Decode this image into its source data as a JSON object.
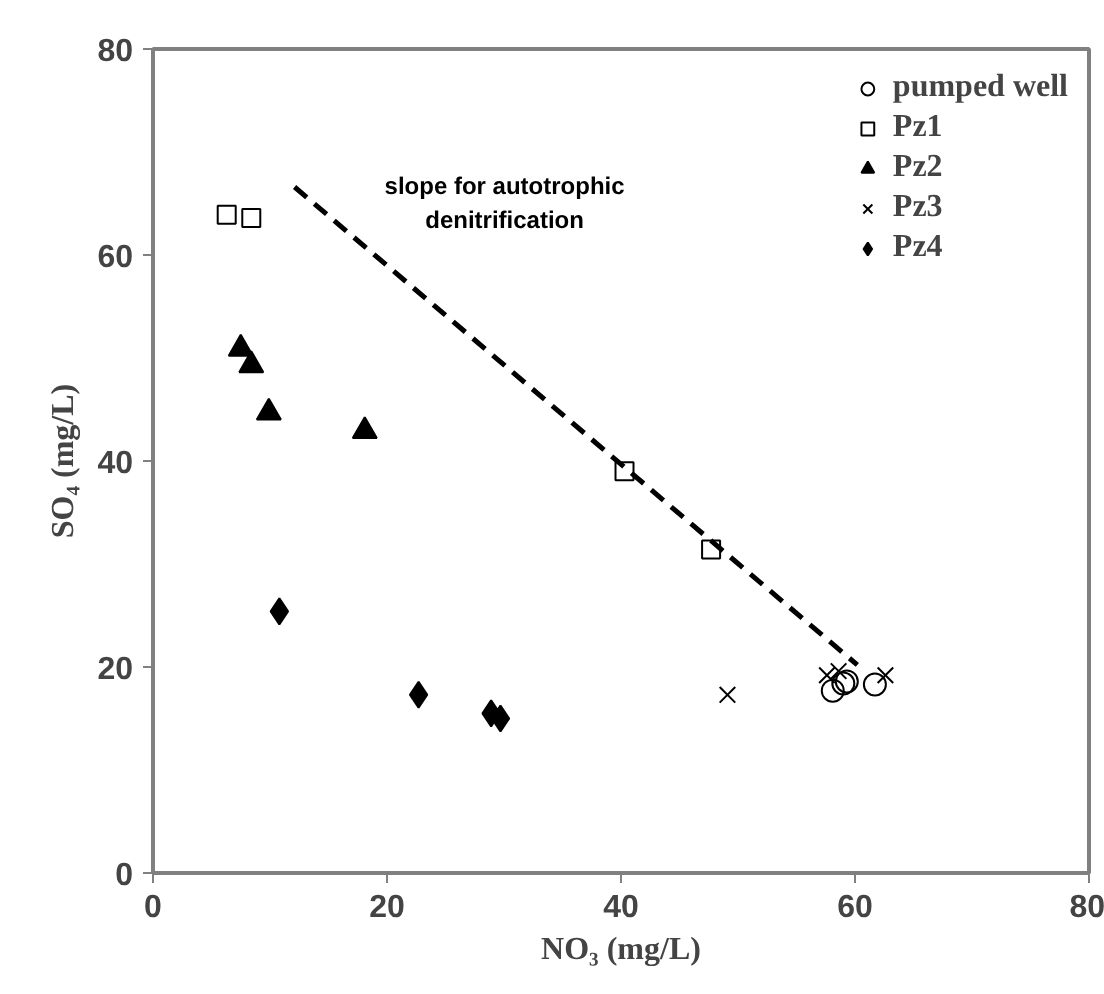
{
  "chart_data": {
    "type": "scatter",
    "xlabel": "NO₃ (mg/L)",
    "ylabel": "SO₄ (mg/L)",
    "xlim": [
      0,
      80
    ],
    "ylim": [
      0,
      80
    ],
    "xticks": [
      0,
      20,
      40,
      60,
      80
    ],
    "yticks": [
      0,
      20,
      40,
      60,
      80
    ],
    "grid": false,
    "legend": "top right",
    "series": [
      {
        "name": "pumped well",
        "color": "#000000",
        "marker": "circle",
        "x": [
          58.1,
          59.0,
          59.3,
          61.7
        ],
        "values": [
          17.7,
          18.4,
          18.6,
          18.3
        ]
      },
      {
        "name": "Pz1",
        "color": "#000000",
        "marker": "square",
        "x": [
          6.3,
          8.4,
          40.3,
          47.7
        ],
        "values": [
          63.9,
          63.6,
          39.0,
          31.4
        ]
      },
      {
        "name": "Pz2",
        "color": "#000000",
        "marker": "triangle",
        "x": [
          7.5,
          8.4,
          9.9,
          18.1
        ],
        "values": [
          50.9,
          49.3,
          44.7,
          42.9
        ]
      },
      {
        "name": "Pz3",
        "color": "#000000",
        "marker": "cross",
        "x": [
          49.1,
          57.6,
          58.6,
          62.6
        ],
        "values": [
          17.3,
          19.2,
          19.6,
          19.2
        ]
      },
      {
        "name": "Pz4",
        "color": "#000000",
        "marker": "diamond",
        "x": [
          10.8,
          22.7,
          28.9,
          29.7
        ],
        "values": [
          25.4,
          17.3,
          15.5,
          15.0
        ]
      },
      {
        "name": "slope for autotrophic denitrification",
        "type": "line",
        "line_style": "dashed",
        "color": "#000000",
        "x": [
          12.1,
          60.2
        ],
        "values": [
          66.6,
          20.2
        ]
      }
    ]
  }
}
